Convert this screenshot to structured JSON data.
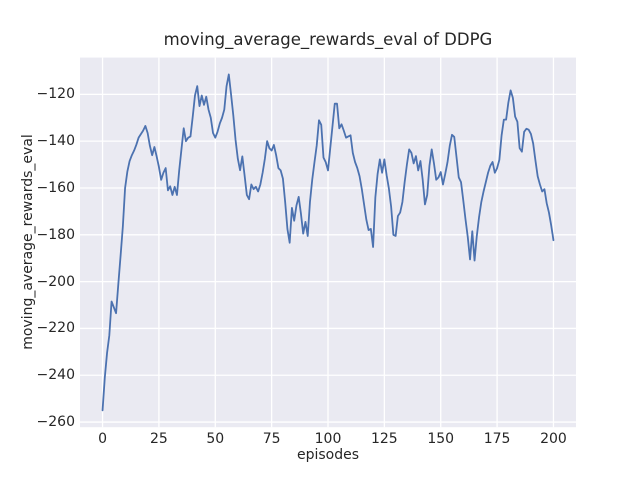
{
  "chart_data": {
    "type": "line",
    "title": "moving_average_rewards_eval of DDPG",
    "xlabel": "episodes",
    "ylabel": "moving_average_rewards_eval",
    "x_start": 0,
    "x_step": 1,
    "values": [
      -255,
      -241,
      -230.5,
      -223,
      -208.5,
      -211,
      -213.5,
      -201,
      -189,
      -176.5,
      -160,
      -153,
      -148.5,
      -146,
      -144,
      -141.5,
      -138.5,
      -137,
      -135.5,
      -133.5,
      -136.5,
      -142,
      -146,
      -142.5,
      -146.5,
      -151,
      -156.5,
      -153.5,
      -151.5,
      -161,
      -159.3,
      -163,
      -159.5,
      -163,
      -152.5,
      -143.5,
      -134.5,
      -140,
      -138.5,
      -138,
      -129.5,
      -120.5,
      -116.5,
      -125,
      -120.5,
      -124.5,
      -121,
      -126.5,
      -130,
      -136.5,
      -138.5,
      -136,
      -132.5,
      -130,
      -126.5,
      -116.5,
      -111.5,
      -120,
      -129,
      -139.5,
      -147.5,
      -152.4,
      -146.5,
      -154.6,
      -163,
      -164.8,
      -158.5,
      -160.5,
      -159.5,
      -161.5,
      -158.5,
      -153.5,
      -147.5,
      -140,
      -143,
      -144,
      -141.6,
      -146,
      -151.5,
      -152.5,
      -156,
      -166,
      -177.5,
      -183.4,
      -168.5,
      -174,
      -167.5,
      -163.8,
      -171,
      -179.5,
      -174.5,
      -180.5,
      -166,
      -156.5,
      -149,
      -141.8,
      -131.1,
      -133,
      -147,
      -149,
      -152.5,
      -143,
      -133.5,
      -124,
      -124,
      -134.5,
      -132.8,
      -135.5,
      -138.5,
      -138,
      -137.5,
      -145,
      -148.9,
      -151.5,
      -155,
      -160.5,
      -167,
      -173.5,
      -178,
      -177.5,
      -185.2,
      -164,
      -154,
      -147.8,
      -153.5,
      -147.8,
      -154.5,
      -160.2,
      -168,
      -180,
      -180.5,
      -172,
      -170.5,
      -166,
      -157.5,
      -150,
      -143.5,
      -145,
      -149.5,
      -146.4,
      -152.5,
      -148.5,
      -156.5,
      -167,
      -163,
      -150.5,
      -143.5,
      -149.5,
      -156.5,
      -155.5,
      -153.2,
      -158.5,
      -154,
      -149,
      -142,
      -137.3,
      -138.2,
      -146.8,
      -155.5,
      -157.5,
      -165.3,
      -173.5,
      -181,
      -190.5,
      -178.5,
      -191,
      -180.5,
      -172.5,
      -166,
      -161.5,
      -157.5,
      -153.5,
      -150.5,
      -148.9,
      -153.5,
      -151.5,
      -148,
      -137.5,
      -130.8,
      -130.8,
      -123.5,
      -118.3,
      -121.5,
      -129.5,
      -131.7,
      -143,
      -144.5,
      -136,
      -134.7,
      -135.1,
      -136.9,
      -141,
      -148.2,
      -155,
      -158.5,
      -161.5,
      -160.5,
      -166.5,
      -170.5,
      -176,
      -182.3
    ],
    "xticks": [
      0,
      25,
      50,
      75,
      100,
      125,
      150,
      175,
      200
    ],
    "yticks": [
      -120,
      -140,
      -160,
      -180,
      -200,
      -220,
      -240,
      -260
    ],
    "xlim": [
      -10,
      210
    ],
    "ylim": [
      -262.2,
      -104.3
    ],
    "grid": true,
    "legend": "none",
    "style": {
      "line_color": "#4c72b0",
      "line_width": 1.8,
      "plot_bg": "#eaeaf2",
      "grid_color": "#ffffff",
      "text_color": "#262626",
      "figure_bg": "#ffffff"
    }
  }
}
